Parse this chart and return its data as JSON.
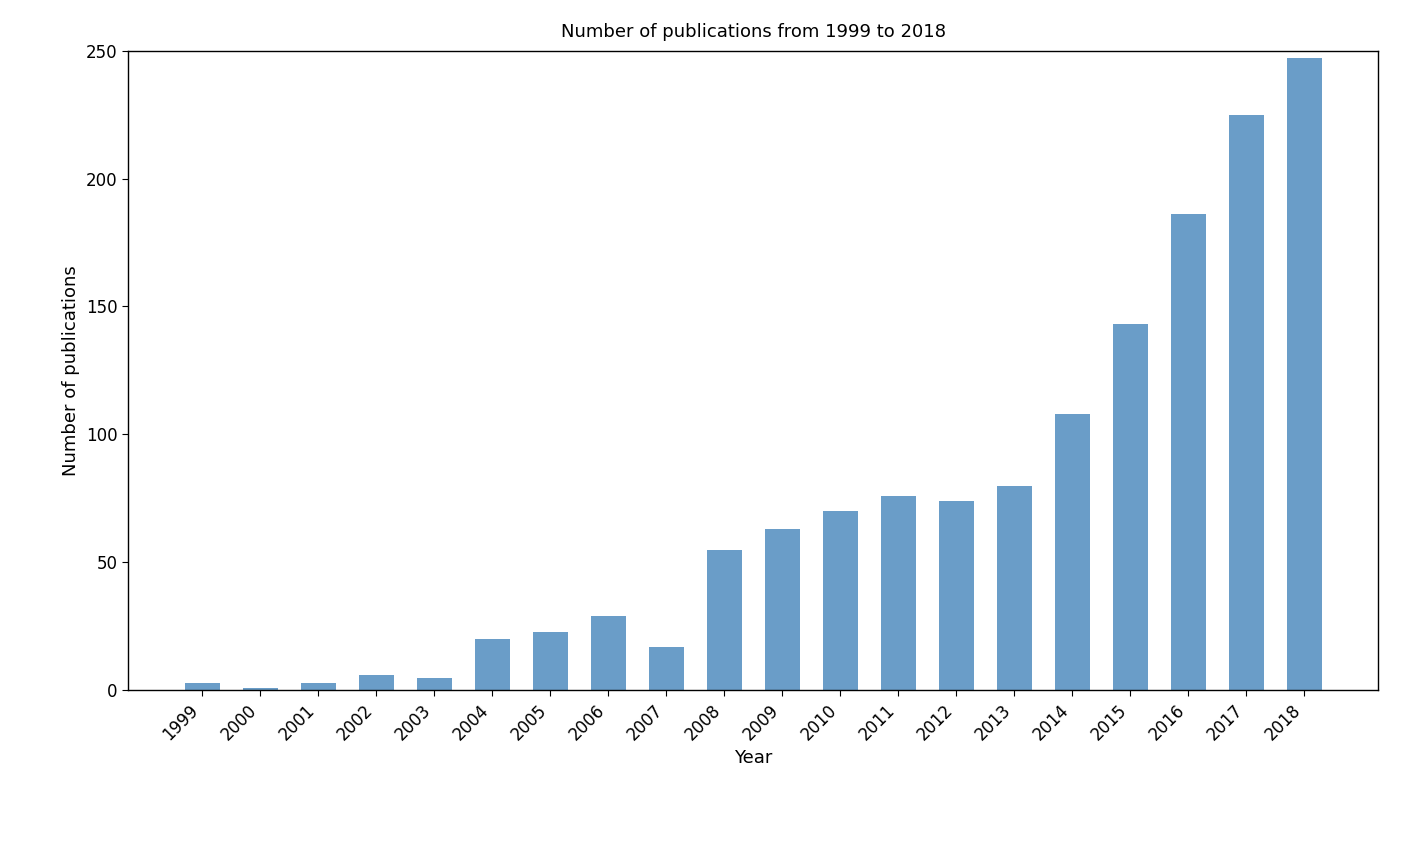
{
  "years": [
    1999,
    2000,
    2001,
    2002,
    2003,
    2004,
    2005,
    2006,
    2007,
    2008,
    2009,
    2010,
    2011,
    2012,
    2013,
    2014,
    2015,
    2016,
    2017,
    2018
  ],
  "values": [
    3,
    1,
    3,
    6,
    5,
    20,
    23,
    29,
    17,
    55,
    63,
    70,
    76,
    74,
    80,
    108,
    143,
    186,
    225,
    247
  ],
  "bar_color": "#6a9dc8",
  "title": "Number of publications from 1999 to 2018",
  "xlabel": "Year",
  "ylabel": "Number of publications",
  "ylim": [
    0,
    250
  ],
  "yticks": [
    0,
    50,
    100,
    150,
    200,
    250
  ],
  "title_fontsize": 13,
  "label_fontsize": 13,
  "tick_fontsize": 12,
  "background_color": "#ffffff",
  "bar_width": 0.6
}
